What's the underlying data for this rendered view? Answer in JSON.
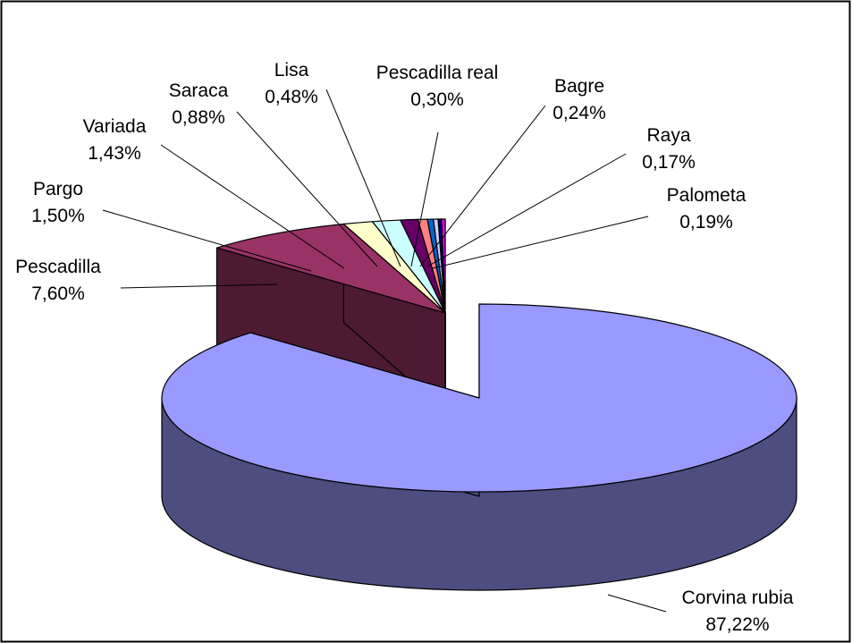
{
  "chart_data": {
    "type": "pie",
    "style": "3d-exploded",
    "title": "",
    "legend": "none",
    "slices": [
      {
        "label": "Corvina rubia",
        "value": 87.22,
        "display": "87,22%",
        "color": "#9999ff",
        "side_color": "#4d4d80"
      },
      {
        "label": "Pescadilla",
        "value": 7.6,
        "display": "7,60%",
        "color": "#993366",
        "side_color": "#4d1a33"
      },
      {
        "label": "Pargo",
        "value": 1.5,
        "display": "1,50%",
        "color": "#ffffcc",
        "side_color": "#808066"
      },
      {
        "label": "Variada",
        "value": 1.43,
        "display": "1,43%",
        "color": "#ccffff",
        "side_color": "#668080"
      },
      {
        "label": "Saraca",
        "value": 0.88,
        "display": "0,88%",
        "color": "#660066",
        "side_color": "#330033"
      },
      {
        "label": "Lisa",
        "value": 0.48,
        "display": "0,48%",
        "color": "#ff8080",
        "side_color": "#804040"
      },
      {
        "label": "Pescadilla real",
        "value": 0.3,
        "display": "0,30%",
        "color": "#0066cc",
        "side_color": "#003366"
      },
      {
        "label": "Bagre",
        "value": 0.24,
        "display": "0,24%",
        "color": "#ccccff",
        "side_color": "#666680"
      },
      {
        "label": "Raya",
        "value": 0.17,
        "display": "0,17%",
        "color": "#000080",
        "side_color": "#000040"
      },
      {
        "label": "Palometa",
        "value": 0.19,
        "display": "0,19%",
        "color": "#ff00ff",
        "side_color": "#800080"
      }
    ]
  }
}
